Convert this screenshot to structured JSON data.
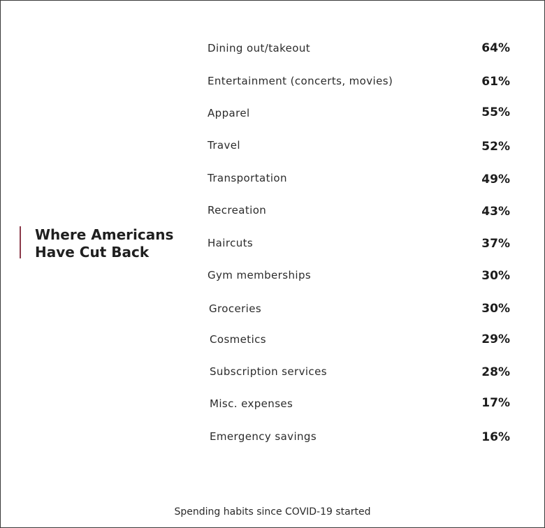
{
  "chart_data": {
    "type": "table",
    "title_lines": [
      "Where Americans",
      "Have Cut Back"
    ],
    "categories": [
      "Dining out/takeout",
      "Entertainment (concerts, movies)",
      "Apparel",
      "Travel",
      "Transportation",
      "Recreation",
      "Haircuts",
      "Gym memberships",
      "Groceries",
      "Cosmetics",
      "Subscription services",
      "Misc. expenses",
      "Emergency savings"
    ],
    "value_labels": [
      "64%",
      "61%",
      "55%",
      "52%",
      "49%",
      "43%",
      "37%",
      "30%",
      "30%",
      "29%",
      "28%",
      "17%",
      "16%"
    ],
    "values": [
      64,
      61,
      55,
      52,
      49,
      43,
      37,
      30,
      30,
      29,
      28,
      17,
      16
    ],
    "caption": "Spending habits since COVID-19 started",
    "accent_color": "#8b3a4a"
  }
}
